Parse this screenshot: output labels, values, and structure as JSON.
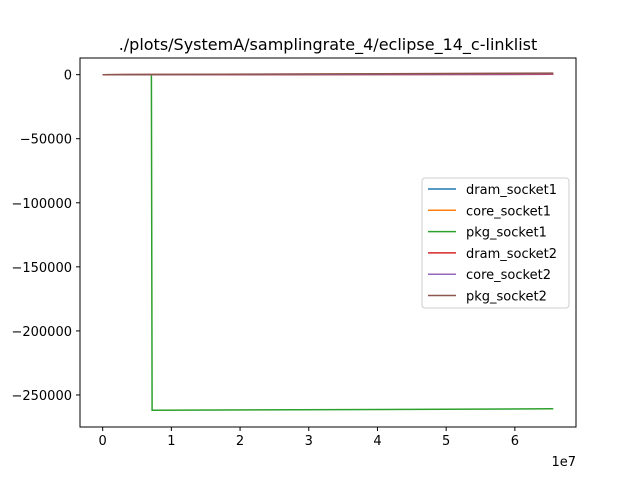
{
  "chart_data": {
    "type": "line",
    "title": "./plots/SystemA/samplingrate_4/eclipse_14_c-linklist",
    "xlabel": "",
    "ylabel": "",
    "x_offset_label": "1e7",
    "xlim": [
      -3300000,
      68900000
    ],
    "ylim": [
      -275000,
      13000
    ],
    "x_ticks": [
      0,
      10000000,
      20000000,
      30000000,
      40000000,
      50000000,
      60000000
    ],
    "x_tick_labels": [
      "0",
      "1",
      "2",
      "3",
      "4",
      "5",
      "6"
    ],
    "y_ticks": [
      0,
      -50000,
      -100000,
      -150000,
      -200000,
      -250000
    ],
    "y_tick_labels": [
      "0",
      "−50000",
      "−100000",
      "−150000",
      "−200000",
      "−250000"
    ],
    "grid": false,
    "legend_position": "center-right",
    "series": [
      {
        "name": "dram_socket1",
        "color": "#1f77b4",
        "x": [
          0,
          65600000
        ],
        "y": [
          0,
          300
        ]
      },
      {
        "name": "core_socket1",
        "color": "#ff7f0e",
        "x": [
          0,
          65600000
        ],
        "y": [
          0,
          900
        ]
      },
      {
        "name": "pkg_socket1",
        "color": "#2ca02c",
        "x": [
          0,
          7100000,
          7200000,
          65600000
        ],
        "y": [
          0,
          0,
          -262000,
          -260800
        ]
      },
      {
        "name": "dram_socket2",
        "color": "#d62728",
        "x": [
          0,
          65600000
        ],
        "y": [
          0,
          300
        ]
      },
      {
        "name": "core_socket2",
        "color": "#9467bd",
        "x": [
          0,
          65600000
        ],
        "y": [
          0,
          700
        ]
      },
      {
        "name": "pkg_socket2",
        "color": "#8c564b",
        "x": [
          0,
          65600000
        ],
        "y": [
          0,
          1200
        ]
      }
    ]
  }
}
